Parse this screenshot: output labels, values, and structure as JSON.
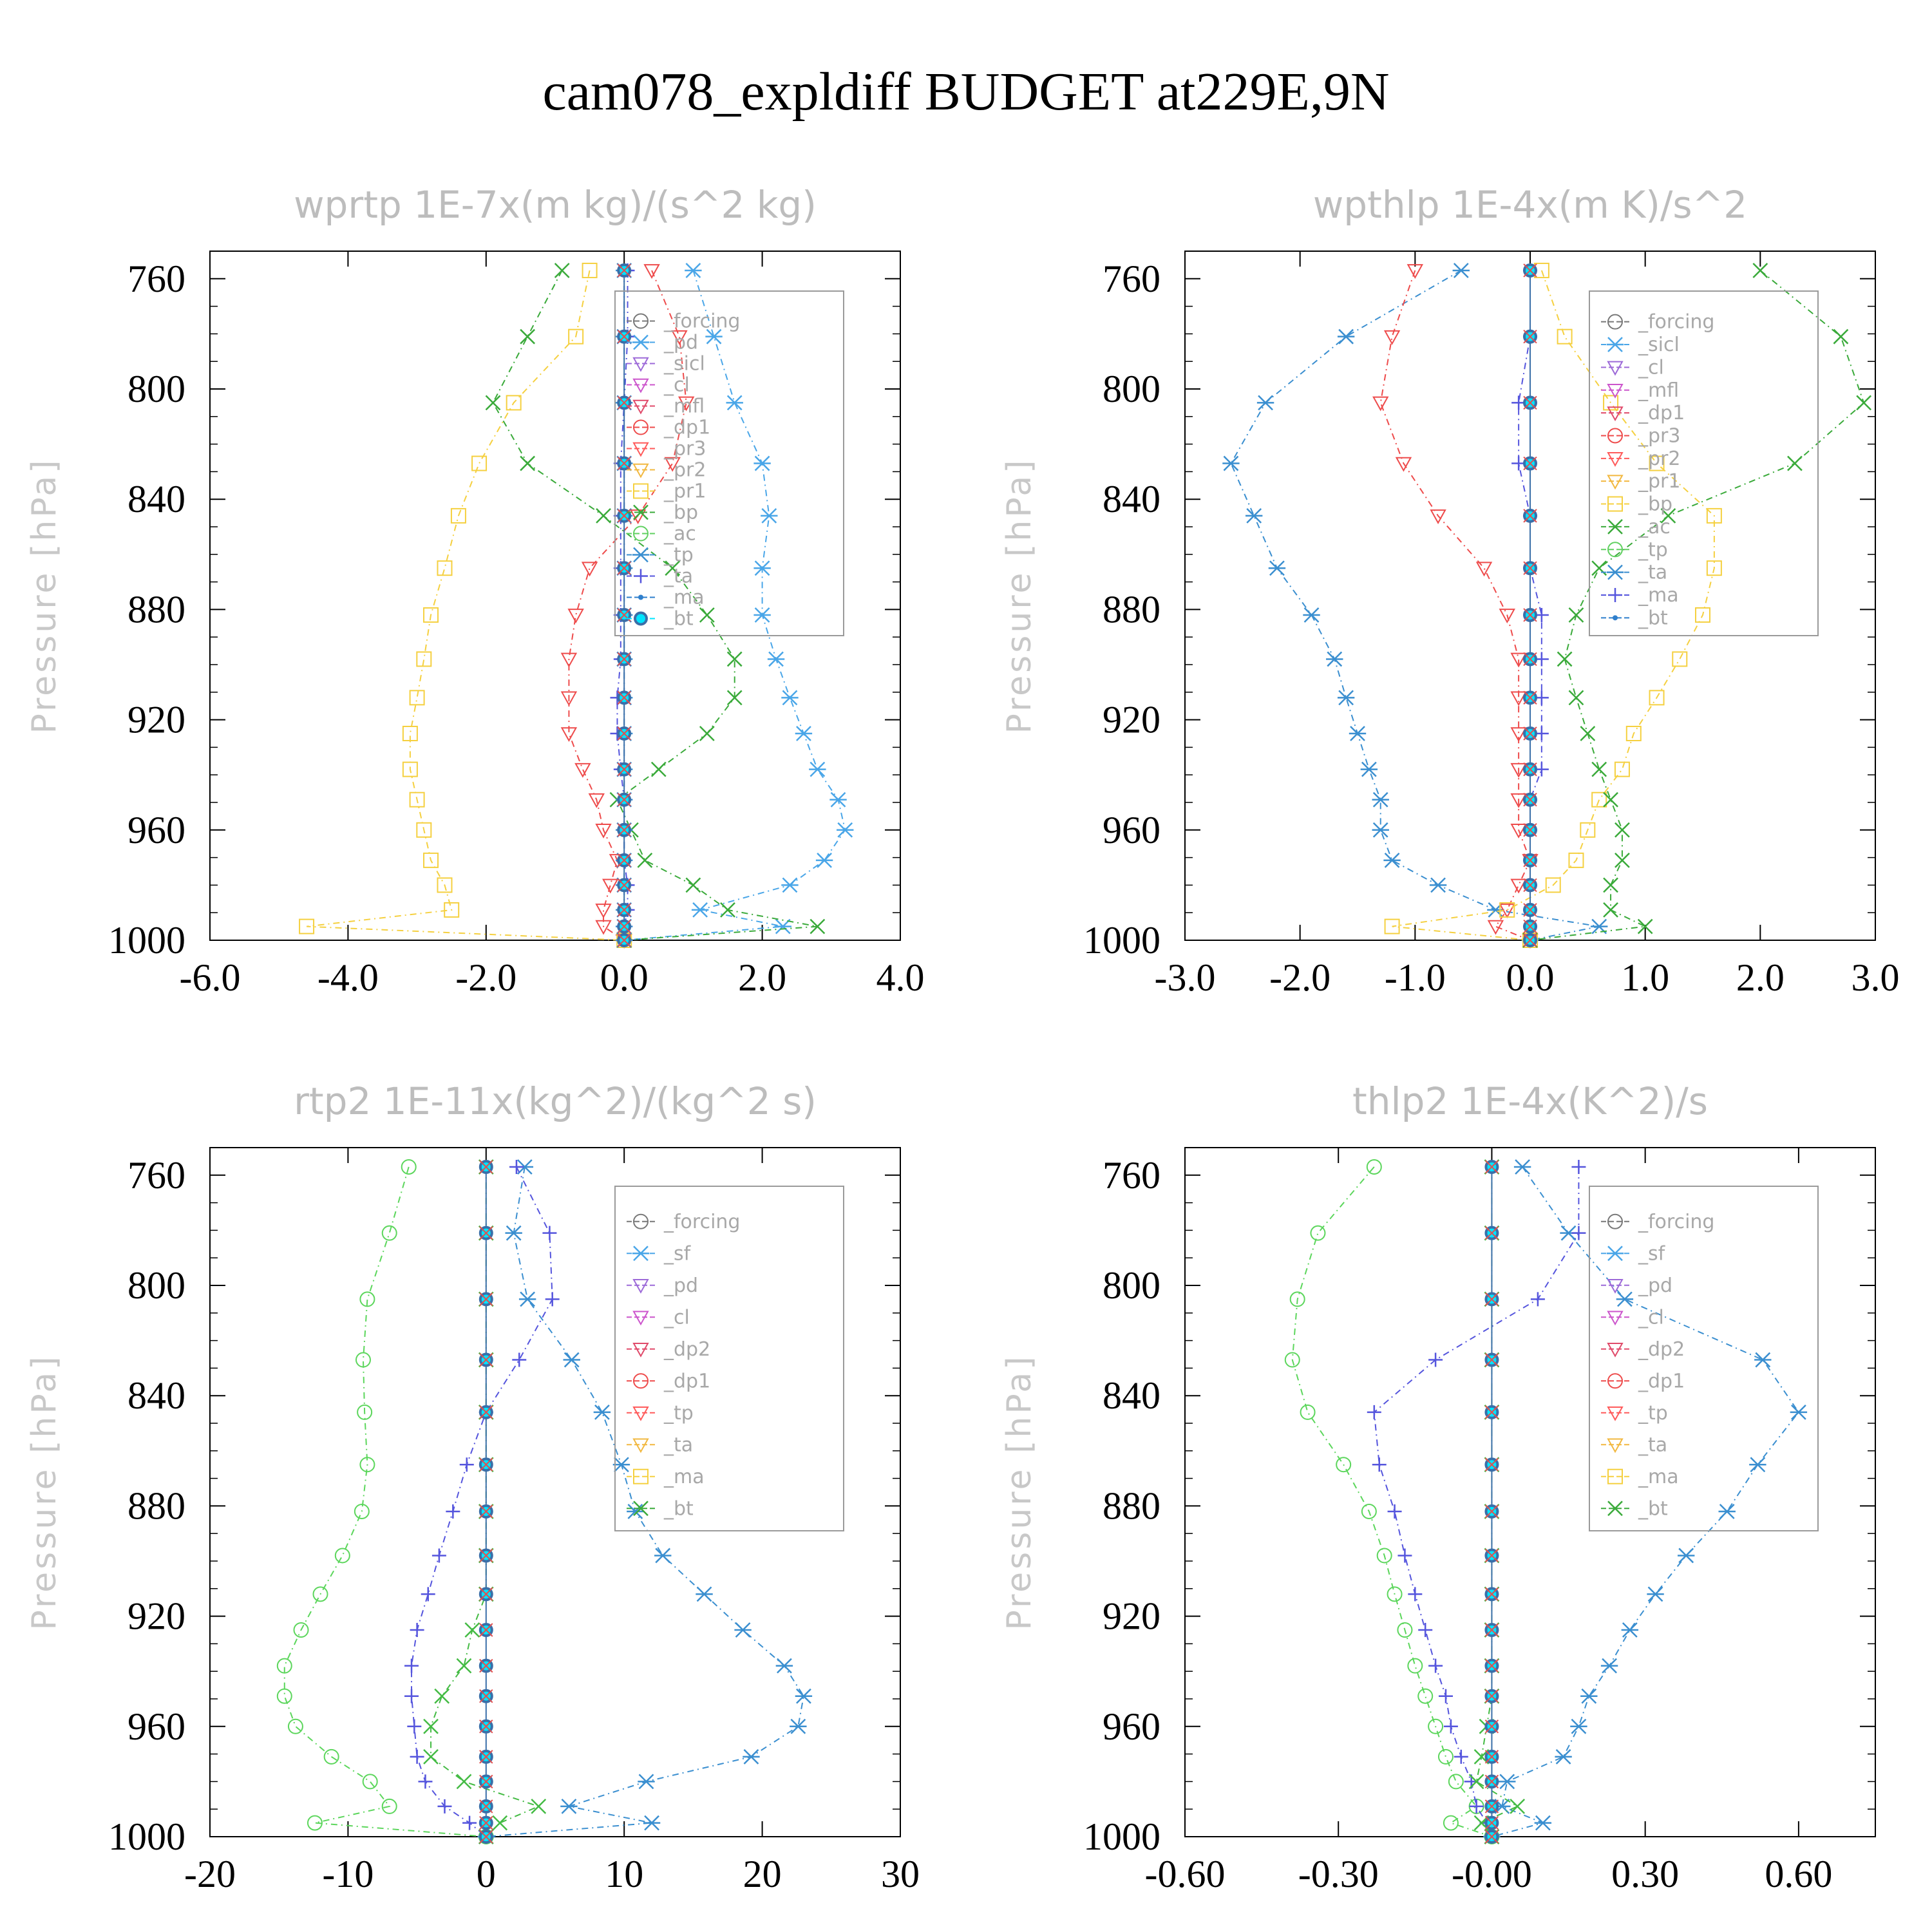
{
  "figure": {
    "title": "cam078_expldiff  BUDGET at229E,9N"
  },
  "ylabel": "Pressure [hPa]",
  "y_ticks": [
    "760",
    "800",
    "840",
    "880",
    "920",
    "960",
    "1000"
  ],
  "colors": {
    "forcing_a": "#555555",
    "forcing_b": "#c9a7e0",
    "forcing_c": "#e0506a",
    "pd": "#4aa6e8",
    "sicl": "#9d6ad8",
    "cl": "#cc55cc",
    "cl2": "#e8c040",
    "mfl": "#e04a6a",
    "dp1": "#ee4b4b",
    "dp1g": "#5cd65c",
    "dp2": "#44bb44",
    "pr3": "#ff5a5a",
    "pr2": "#f2b840",
    "pr1": "#f5d040",
    "sf": "#ff5a5a",
    "bp": "#3aaa3a",
    "ac": "#60d060",
    "tp": "#3b8fd0",
    "ta": "#5555dd",
    "ma": "#2f7fcc",
    "bt": "#00e5ff"
  },
  "chart_data": [
    {
      "type": "line",
      "title": "wprtp  1E-7x(m kg)/(s^2 kg)",
      "ylabel": "Pressure [hPa]",
      "xlim": [
        -6,
        4
      ],
      "ylim": [
        1000,
        750
      ],
      "x_ticks": [
        "-6.0",
        "-4.0",
        "-2.0",
        "0.0",
        "2.0",
        "4.0"
      ],
      "y": [
        757,
        781,
        805,
        827,
        846,
        865,
        882,
        898,
        912,
        925,
        938,
        949,
        960,
        971,
        980,
        989,
        995,
        1000
      ],
      "legend": {
        "entries": [
          "_forcing",
          "_pd",
          "_sicl",
          "_cl",
          "_mfl",
          "_dp1",
          "_pr3",
          "_pr2",
          "_pr1",
          "_bp",
          "_ac",
          "_tp",
          "_ta",
          "_ma",
          "_bt"
        ],
        "placement": "top-right"
      },
      "series": [
        {
          "name": "_pd",
          "key": "pd",
          "marker": "asterisk",
          "values": [
            1.0,
            1.3,
            1.6,
            2.0,
            2.1,
            2.0,
            2.0,
            2.2,
            2.4,
            2.6,
            2.8,
            3.1,
            3.2,
            2.9,
            2.4,
            1.1,
            2.3,
            0
          ]
        },
        {
          "name": "_dp1",
          "key": "dp1",
          "marker": "triangle",
          "values": [
            0.4,
            0.8,
            0.9,
            0.7,
            0.2,
            -0.5,
            -0.7,
            -0.8,
            -0.8,
            -0.8,
            -0.6,
            -0.4,
            -0.3,
            -0.1,
            -0.2,
            -0.3,
            -0.3,
            0
          ]
        },
        {
          "name": "_pr1",
          "key": "pr1",
          "marker": "square",
          "values": [
            -0.5,
            -0.7,
            -1.6,
            -2.1,
            -2.4,
            -2.6,
            -2.8,
            -2.9,
            -3.0,
            -3.1,
            -3.1,
            -3.0,
            -2.9,
            -2.8,
            -2.6,
            -2.5,
            -4.6,
            0
          ]
        },
        {
          "name": "_bp",
          "key": "bp",
          "marker": "cross",
          "values": [
            -0.9,
            -1.4,
            -1.9,
            -1.4,
            -0.3,
            0.7,
            1.2,
            1.6,
            1.6,
            1.2,
            0.5,
            -0.1,
            0.1,
            0.3,
            1.0,
            1.5,
            2.8,
            0
          ]
        },
        {
          "name": "_tp",
          "key": "tp",
          "marker": "asterisk",
          "values": [
            0,
            0,
            0,
            0,
            0,
            0,
            0,
            0,
            0,
            0,
            0,
            0,
            0,
            0,
            0,
            0,
            0,
            0
          ]
        },
        {
          "name": "_ta",
          "key": "ta",
          "marker": "plus",
          "values": [
            0.05,
            0.05,
            0.0,
            -0.05,
            -0.05,
            -0.05,
            -0.05,
            -0.05,
            -0.1,
            -0.1,
            -0.05,
            0,
            0,
            0,
            0.05,
            0.05,
            0,
            0
          ]
        },
        {
          "name": "_bt",
          "key": "bt",
          "marker": "bt",
          "values": [
            0,
            0,
            0,
            0,
            0,
            0,
            0,
            0,
            0,
            0,
            0,
            0,
            0,
            0,
            0,
            0,
            0,
            0
          ]
        }
      ]
    },
    {
      "type": "line",
      "title": "wpthlp  1E-4x(m K)/s^2",
      "ylabel": "Pressure [hPa]",
      "xlim": [
        -3,
        3
      ],
      "ylim": [
        1000,
        750
      ],
      "x_ticks": [
        "-3.0",
        "-2.0",
        "-1.0",
        "0.0",
        "1.0",
        "2.0",
        "3.0"
      ],
      "y": [
        757,
        781,
        805,
        827,
        846,
        865,
        882,
        898,
        912,
        925,
        938,
        949,
        960,
        971,
        980,
        989,
        995,
        1000
      ],
      "legend": {
        "entries": [
          "_forcing",
          "_sicl",
          "_cl",
          "_mfl",
          "_dp1",
          "_pr3",
          "_pr2",
          "_pr1",
          "_bp",
          "_ac",
          "_tp",
          "_ta",
          "_ma",
          "_bt"
        ],
        "placement": "top-right"
      },
      "series": [
        {
          "name": "_tp",
          "key": "tp",
          "marker": "asterisk",
          "values": [
            -0.6,
            -1.6,
            -2.3,
            -2.6,
            -2.4,
            -2.2,
            -1.9,
            -1.7,
            -1.6,
            -1.5,
            -1.4,
            -1.3,
            -1.3,
            -1.2,
            -0.8,
            -0.3,
            0.6,
            0
          ]
        },
        {
          "name": "_dp1",
          "key": "dp1",
          "marker": "triangle",
          "values": [
            -1.0,
            -1.2,
            -1.3,
            -1.1,
            -0.8,
            -0.4,
            -0.2,
            -0.1,
            -0.1,
            -0.1,
            -0.1,
            -0.1,
            -0.1,
            0.0,
            -0.1,
            -0.2,
            -0.3,
            0
          ]
        },
        {
          "name": "_pr1",
          "key": "pr1",
          "marker": "square",
          "values": [
            0.1,
            0.3,
            0.7,
            1.1,
            1.6,
            1.6,
            1.5,
            1.3,
            1.1,
            0.9,
            0.8,
            0.6,
            0.5,
            0.4,
            0.2,
            -0.2,
            -1.2,
            0
          ]
        },
        {
          "name": "_bp",
          "key": "bp",
          "marker": "cross",
          "values": [
            2.0,
            2.7,
            2.9,
            2.3,
            1.2,
            0.6,
            0.4,
            0.3,
            0.4,
            0.5,
            0.6,
            0.7,
            0.8,
            0.8,
            0.7,
            0.7,
            1.0,
            0
          ]
        },
        {
          "name": "_ta",
          "key": "ta",
          "marker": "plus",
          "values": [
            0,
            0,
            -0.1,
            -0.1,
            0,
            0,
            0.1,
            0.1,
            0.1,
            0.1,
            0.1,
            0,
            0,
            0,
            0,
            0,
            0,
            0
          ]
        },
        {
          "name": "_bt",
          "key": "bt",
          "marker": "bt",
          "values": [
            0,
            0,
            0,
            0,
            0,
            0,
            0,
            0,
            0,
            0,
            0,
            0,
            0,
            0,
            0,
            0,
            0,
            0
          ]
        }
      ]
    },
    {
      "type": "line",
      "title": "rtp2  1E-11x(kg^2)/(kg^2 s)",
      "ylabel": "Pressure [hPa]",
      "xlim": [
        -20,
        30
      ],
      "ylim": [
        1000,
        750
      ],
      "x_ticks": [
        "-20",
        "-10",
        "0",
        "10",
        "20",
        "30"
      ],
      "y": [
        757,
        781,
        805,
        827,
        846,
        865,
        882,
        898,
        912,
        925,
        938,
        949,
        960,
        971,
        980,
        989,
        995,
        1000
      ],
      "legend": {
        "entries": [
          "_forcing",
          "_sf",
          "_pd",
          "_cl",
          "_dp2",
          "_dp1",
          "_tp",
          "_ta",
          "_ma",
          "_bt"
        ],
        "placement": "top-right"
      },
      "series": [
        {
          "name": "_dp1",
          "key": "dp1g",
          "marker": "circle",
          "values": [
            -5.6,
            -7.0,
            -8.6,
            -8.9,
            -8.8,
            -8.6,
            -9.0,
            -10.4,
            -12.0,
            -13.4,
            -14.6,
            -14.6,
            -13.8,
            -11.2,
            -8.4,
            -7.0,
            -12.4,
            0
          ]
        },
        {
          "name": "_tp",
          "key": "tp",
          "marker": "asterisk",
          "values": [
            2.8,
            2.0,
            3.0,
            6.2,
            8.4,
            9.8,
            10.8,
            12.8,
            15.8,
            18.6,
            21.6,
            23.0,
            22.6,
            19.2,
            11.6,
            6.0,
            12.0,
            0
          ]
        },
        {
          "name": "_ta",
          "key": "ta",
          "marker": "plus",
          "values": [
            2.2,
            4.6,
            4.8,
            2.4,
            0.0,
            -1.4,
            -2.4,
            -3.4,
            -4.2,
            -5.0,
            -5.4,
            -5.4,
            -5.2,
            -5.0,
            -4.4,
            -3.0,
            -1.2,
            0
          ]
        },
        {
          "name": "_dp2",
          "key": "dp2",
          "marker": "cross",
          "values": [
            0,
            0,
            0,
            0,
            0,
            0,
            0,
            0,
            0,
            -1.0,
            -1.6,
            -3.2,
            -4.0,
            -4.0,
            -1.6,
            3.8,
            1.0,
            0
          ]
        },
        {
          "name": "_bt",
          "key": "bt",
          "marker": "bt",
          "values": [
            0,
            0,
            0,
            0,
            0,
            0,
            0,
            0,
            0,
            0,
            0,
            0,
            0,
            0,
            0,
            0,
            0,
            0
          ]
        }
      ]
    },
    {
      "type": "line",
      "title": "thlp2  1E-4x(K^2)/s",
      "ylabel": "Pressure [hPa]",
      "xlim": [
        -0.6,
        0.75
      ],
      "ylim": [
        1000,
        750
      ],
      "x_ticks": [
        "-0.60",
        "-0.30",
        "-0.00",
        "0.30",
        "0.60"
      ],
      "y": [
        757,
        781,
        805,
        827,
        846,
        865,
        882,
        898,
        912,
        925,
        938,
        949,
        960,
        971,
        980,
        989,
        995,
        1000
      ],
      "legend": {
        "entries": [
          "_forcing",
          "_sf",
          "_pd",
          "_cl",
          "_dp2",
          "_dp1",
          "_tp",
          "_ta",
          "_ma",
          "_bt"
        ],
        "placement": "top-right"
      },
      "series": [
        {
          "name": "_dp1",
          "key": "dp1g",
          "marker": "circle",
          "values": [
            -0.23,
            -0.34,
            -0.38,
            -0.39,
            -0.36,
            -0.29,
            -0.24,
            -0.21,
            -0.19,
            -0.17,
            -0.15,
            -0.13,
            -0.11,
            -0.09,
            -0.07,
            -0.03,
            -0.08,
            0
          ]
        },
        {
          "name": "_tp",
          "key": "tp",
          "marker": "asterisk",
          "values": [
            0.06,
            0.15,
            0.26,
            0.53,
            0.6,
            0.52,
            0.46,
            0.38,
            0.32,
            0.27,
            0.23,
            0.19,
            0.17,
            0.14,
            0.03,
            0.02,
            0.1,
            0
          ]
        },
        {
          "name": "_ta",
          "key": "ta",
          "marker": "plus",
          "values": [
            0.17,
            0.17,
            0.09,
            -0.11,
            -0.23,
            -0.22,
            -0.19,
            -0.17,
            -0.15,
            -0.13,
            -0.11,
            -0.09,
            -0.08,
            -0.06,
            -0.04,
            -0.03,
            -0.01,
            0
          ]
        },
        {
          "name": "_dp2",
          "key": "dp2",
          "marker": "cross",
          "values": [
            0,
            0,
            0,
            0,
            0,
            0,
            0,
            0,
            0,
            0,
            0,
            0,
            -0.01,
            -0.02,
            -0.03,
            0.05,
            -0.02,
            0
          ]
        },
        {
          "name": "_bt",
          "key": "bt",
          "marker": "bt",
          "values": [
            0,
            0,
            0,
            0,
            0,
            0,
            0,
            0,
            0,
            0,
            0,
            0,
            0,
            0,
            0,
            0,
            0,
            0
          ]
        }
      ]
    }
  ]
}
